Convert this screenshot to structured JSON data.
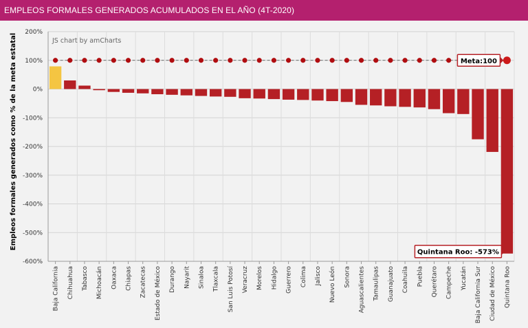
{
  "header": {
    "title": "EMPLEOS FORMALES GENERADOS ACUMULADOS EN EL AÑO (4T-2020)"
  },
  "credit": "JS chart by amCharts",
  "colors": {
    "header_bg": "#b4206e",
    "bar": "#b52025",
    "highlight": "#f4c542",
    "goal_marker": "#b00d10"
  },
  "chart_data": {
    "type": "bar",
    "title": "EMPLEOS FORMALES GENERADOS ACUMULADOS EN EL AÑO (4T-2020)",
    "xlabel": "",
    "ylabel": "Empleos formales generados como % de la meta estatal",
    "ylim": [
      -600,
      200
    ],
    "yticks": [
      200,
      100,
      0,
      -100,
      -200,
      -300,
      -400,
      -500,
      -600
    ],
    "ytick_suffix": "%",
    "grid": true,
    "categories": [
      "Baja California",
      "Chihuahua",
      "Tabasco",
      "Michoacán",
      "Oaxaca",
      "Chiapas",
      "Zacatecas",
      "Estado de México",
      "Durango",
      "Nayarit",
      "Sinaloa",
      "Tlaxcala",
      "San Luis Potosí",
      "Veracruz",
      "Morelos",
      "Hidalgo",
      "Guerrero",
      "Colima",
      "Jalisco",
      "Nuevo León",
      "Sonora",
      "Aguascalientes",
      "Tamaulipas",
      "Guanajuato",
      "Coahuila",
      "Puebla",
      "Querétaro",
      "Campeche",
      "Yucatán",
      "Baja California Sur",
      "Ciudad de México",
      "Quintana Roo"
    ],
    "values": [
      79,
      30,
      12,
      -4,
      -10,
      -13,
      -15,
      -18,
      -20,
      -22,
      -24,
      -26,
      -27,
      -32,
      -33,
      -35,
      -37,
      -38,
      -40,
      -42,
      -45,
      -55,
      -57,
      -60,
      -62,
      -64,
      -70,
      -84,
      -87,
      -175,
      -219,
      -573
    ],
    "highlight_index": 0,
    "goal": {
      "value": 100,
      "label": "Meta:100"
    },
    "callouts": [
      {
        "category": "Quintana Roo",
        "label": "Quintana Roo: -573%"
      }
    ]
  }
}
